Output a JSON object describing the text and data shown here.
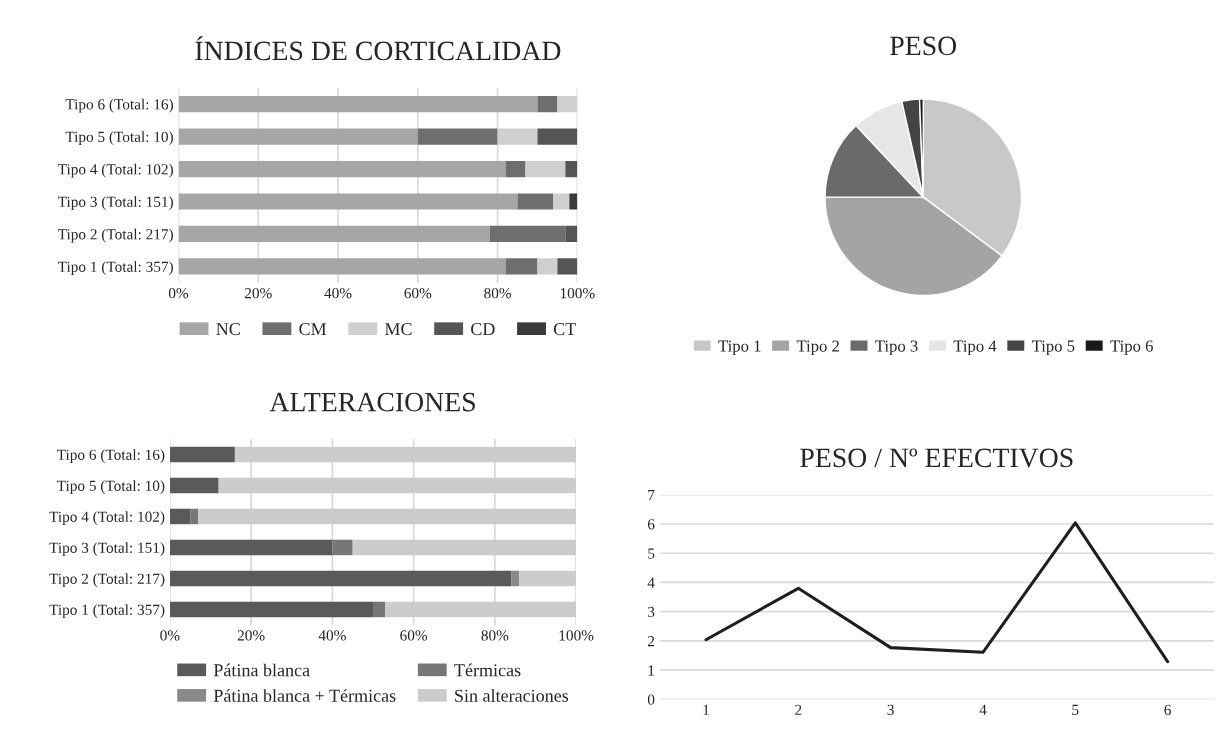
{
  "chart_data": [
    {
      "type": "bar",
      "title": "ÍNDICES DE CORTICALIDAD",
      "orientation": "horizontal",
      "stacked": true,
      "categories": [
        "Tipo 6 (Total: 16)",
        "Tipo 5 (Total: 10)",
        "Tipo 4 (Total: 102)",
        "Tipo 3 (Total: 151)",
        "Tipo 2 (Total: 217)",
        "Tipo 1 (Total: 357)"
      ],
      "series": [
        {
          "name": "NC",
          "color": "#a6a6a6",
          "values": [
            90,
            60,
            82,
            85,
            78,
            82
          ]
        },
        {
          "name": "CM",
          "color": "#6e6e6e",
          "values": [
            5,
            20,
            5,
            9,
            19,
            8
          ]
        },
        {
          "name": "MC",
          "color": "#cfcfcf",
          "values": [
            5,
            10,
            10,
            4,
            0,
            5
          ]
        },
        {
          "name": "CD",
          "color": "#555555",
          "values": [
            0,
            10,
            3,
            0,
            3,
            5
          ]
        },
        {
          "name": "CT",
          "color": "#3a3a3a",
          "values": [
            0,
            0,
            0,
            2,
            0,
            0
          ]
        }
      ],
      "xlim": [
        0,
        100
      ],
      "xticks": [
        {
          "value": 0,
          "label": "0%"
        },
        {
          "value": 20,
          "label": "20%"
        },
        {
          "value": 40,
          "label": "40%"
        },
        {
          "value": 60,
          "label": "60%"
        },
        {
          "value": 80,
          "label": "80%"
        },
        {
          "value": 100,
          "label": "100%"
        }
      ],
      "grid": "x",
      "legend": "bottom"
    },
    {
      "type": "pie",
      "title": "PESO",
      "categories": [
        "Tipo 1",
        "Tipo 2",
        "Tipo 3",
        "Tipo 4",
        "Tipo 5",
        "Tipo 6"
      ],
      "values": [
        35.2,
        39.8,
        13,
        8.5,
        2.9,
        0.6
      ],
      "colors": [
        "#c8c8c8",
        "#a4a4a4",
        "#6a6a6a",
        "#e6e6e6",
        "#444444",
        "#1a1a1a"
      ],
      "legend": "bottom"
    },
    {
      "type": "bar",
      "title": "ALTERACIONES",
      "orientation": "horizontal",
      "stacked": true,
      "categories": [
        "Tipo 6 (Total: 16)",
        "Tipo 5 (Total: 10)",
        "Tipo 4 (Total: 102)",
        "Tipo 3 (Total: 151)",
        "Tipo 2 (Total: 217)",
        "Tipo 1 (Total: 357)"
      ],
      "series": [
        {
          "name": "Pátina blanca",
          "color": "#5a5a5a",
          "values": [
            16,
            12,
            5,
            40,
            84,
            50
          ]
        },
        {
          "name": "Pátina blanca + Térmicas",
          "color": "#8a8a8a",
          "values": [
            0,
            0,
            0,
            0,
            2,
            0
          ]
        },
        {
          "name": "Térmicas",
          "color": "#777777",
          "values": [
            0,
            0,
            2,
            5,
            0,
            3
          ]
        },
        {
          "name": "Sin alteraciones",
          "color": "#cccccc",
          "values": [
            84,
            88,
            93,
            55,
            14,
            47
          ]
        }
      ],
      "xlim": [
        0,
        100
      ],
      "xticks": [
        {
          "value": 0,
          "label": "0%"
        },
        {
          "value": 20,
          "label": "20%"
        },
        {
          "value": 40,
          "label": "40%"
        },
        {
          "value": 60,
          "label": "60%"
        },
        {
          "value": 80,
          "label": "80%"
        },
        {
          "value": 100,
          "label": "100%"
        }
      ],
      "grid": "x",
      "legend": "bottom"
    },
    {
      "type": "line",
      "title": "PESO / Nº EFECTIVOS",
      "categories": [
        "1",
        "2",
        "3",
        "4",
        "5",
        "6"
      ],
      "series": [
        {
          "color": "#1f1f1f",
          "values": [
            2.04,
            3.8,
            1.77,
            1.61,
            6.04,
            1.29
          ]
        }
      ],
      "ylim": [
        0,
        7
      ],
      "yticks": [
        0,
        1,
        2,
        3,
        4,
        5,
        6,
        7
      ],
      "grid": "y"
    }
  ]
}
